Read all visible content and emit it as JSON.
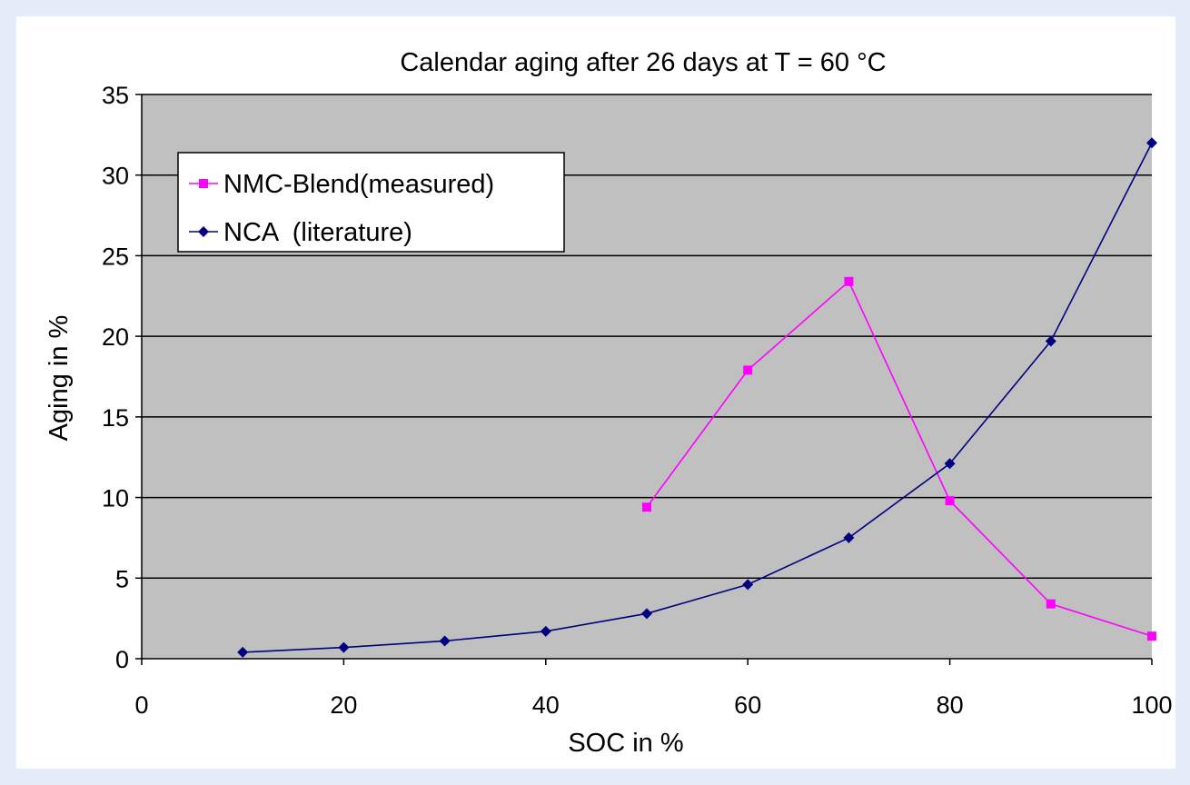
{
  "chart_data": {
    "type": "line",
    "title": "Calendar aging after 26 days at T = 60 °C",
    "xlabel": "SOC in %",
    "ylabel": "Aging in %",
    "xlim": [
      0,
      100
    ],
    "ylim": [
      0,
      35
    ],
    "xticks": [
      0,
      20,
      40,
      60,
      80,
      100
    ],
    "yticks": [
      0,
      5,
      10,
      15,
      20,
      25,
      30,
      35
    ],
    "grid": "horizontal",
    "legend_position": "top-left",
    "plot_background": "#c0c0c0",
    "series": [
      {
        "name": "NMC-Blend(measured)",
        "color": "#ff00ff",
        "marker": "square",
        "x": [
          50,
          60,
          70,
          80,
          90,
          100
        ],
        "y": [
          9.4,
          17.9,
          23.4,
          9.8,
          3.4,
          1.4
        ]
      },
      {
        "name": "NCA  (literature)",
        "color": "#000080",
        "marker": "diamond",
        "x": [
          10,
          20,
          30,
          40,
          50,
          60,
          70,
          80,
          90,
          100
        ],
        "y": [
          0.4,
          0.7,
          1.1,
          1.7,
          2.8,
          4.6,
          7.5,
          12.1,
          19.7,
          32.0
        ]
      }
    ]
  }
}
